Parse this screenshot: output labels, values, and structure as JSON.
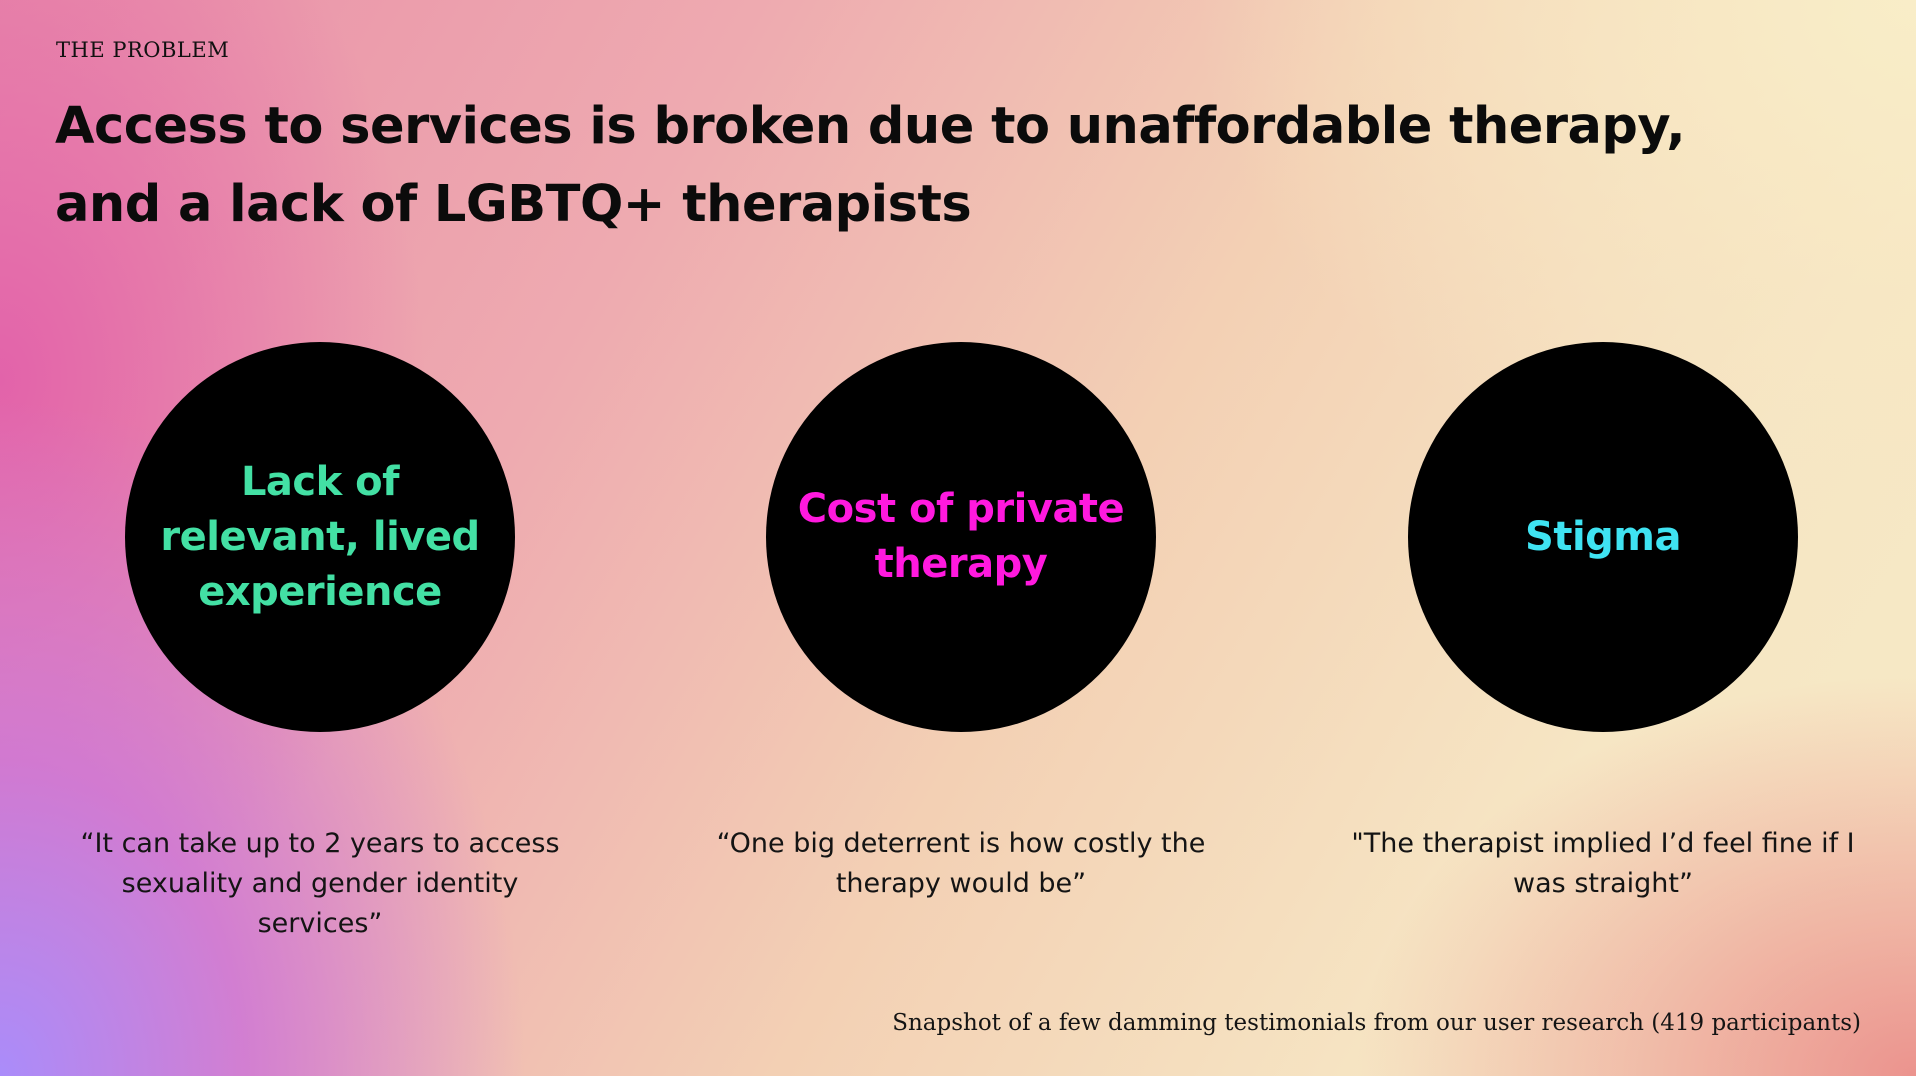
{
  "slide": {
    "eyebrow": "THE PROBLEM",
    "title_line1": "Access to services is broken due to unaffordable therapy,",
    "title_line2": "and a lack of LGBTQ+ therapists",
    "footnote": "Snapshot of a few damming testimonials from our user research (419 participants)"
  },
  "problems": [
    {
      "label": "Lack of relevant, lived experience",
      "color": "#43e0a4",
      "quote": "“It can take up to 2 years to access sexuality and gender identity services”"
    },
    {
      "label": "Cost of private therapy",
      "color": "#ff19de",
      "quote": "“One big deterrent is how costly the therapy would be”"
    },
    {
      "label": "Stigma",
      "color": "#3fe3f2",
      "quote": "\"The therapist implied I’d feel fine if I was straight”"
    }
  ]
}
